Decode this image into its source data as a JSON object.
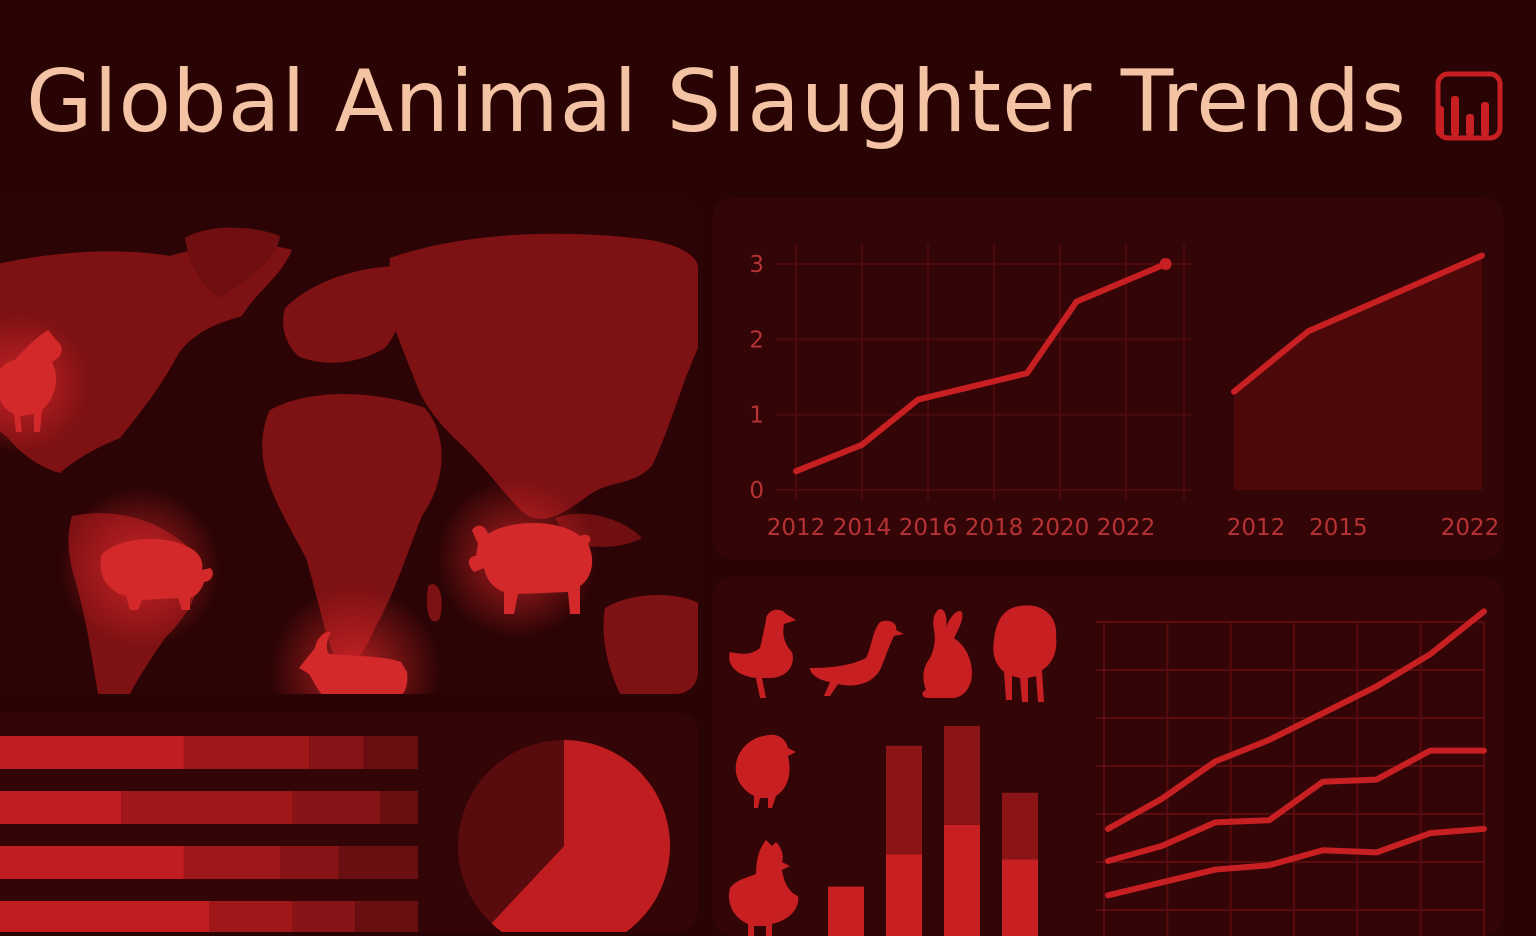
{
  "header": {
    "title": "Global Animal Slaughter Trends"
  },
  "colors": {
    "background": "#2a0405",
    "panel": "#330506",
    "accent": "#c81f22",
    "accent_dark": "#8c1416",
    "title": "#f3c3a3",
    "tick": "#b53235"
  },
  "icons": {
    "logo": "power-bi-logo-icon",
    "map_animals": [
      "rooster-icon",
      "pig-icon",
      "goat-icon",
      "pig-icon"
    ],
    "tiles": [
      "duck-icon",
      "goose-icon",
      "rabbit-icon",
      "sheep-icon",
      "chick-icon",
      "chicken-icon"
    ]
  },
  "chart_data": [
    {
      "id": "line",
      "type": "line",
      "x": [
        2012,
        2014,
        2016,
        2018,
        2020,
        2022
      ],
      "x_tick_labels": [
        "2012",
        "2014",
        "2016",
        "2018",
        "2020",
        "2022"
      ],
      "xlim": [
        2012,
        2024
      ],
      "ylim": [
        0,
        3
      ],
      "y_tick_labels": [
        "0",
        "1",
        "2",
        "3"
      ],
      "grid": true,
      "points": [
        [
          2012,
          0.25
        ],
        [
          2014,
          0.6
        ],
        [
          2015.7,
          1.2
        ],
        [
          2019,
          1.55
        ],
        [
          2020.5,
          2.5
        ],
        [
          2023.2,
          3.0
        ]
      ]
    },
    {
      "id": "area",
      "type": "area",
      "x_tick_labels": [
        "2012",
        "2015",
        "2022"
      ],
      "xlim": [
        2012,
        2022
      ],
      "points": [
        [
          2012,
          1.3
        ],
        [
          2015,
          2.1
        ],
        [
          2022,
          3.1
        ]
      ]
    },
    {
      "id": "stacked_hbar",
      "type": "bar",
      "orientation": "horizontal",
      "stacked": true,
      "rows": [
        [
          0.44,
          0.3,
          0.13,
          0.13
        ],
        [
          0.29,
          0.41,
          0.21,
          0.09
        ],
        [
          0.44,
          0.23,
          0.14,
          0.19
        ],
        [
          0.5,
          0.2,
          0.15,
          0.15
        ]
      ]
    },
    {
      "id": "pie",
      "type": "pie",
      "values": [
        0.62,
        0.38
      ]
    },
    {
      "id": "stacked_vbar",
      "type": "bar",
      "stacked": true,
      "ylim": [
        0,
        170
      ],
      "series": [
        {
          "values": [
            40,
            66,
            90,
            62
          ]
        },
        {
          "values": [
            0,
            88,
            80,
            54
          ]
        }
      ]
    },
    {
      "id": "multi_line",
      "type": "line",
      "grid": true,
      "ylim": [
        0,
        280
      ],
      "series": [
        {
          "values": [
            72,
            100,
            135,
            155,
            180,
            205,
            235,
            275
          ]
        },
        {
          "values": [
            42,
            56,
            78,
            80,
            116,
            118,
            145,
            145
          ]
        },
        {
          "values": [
            10,
            22,
            34,
            38,
            52,
            50,
            68,
            72
          ]
        }
      ]
    }
  ]
}
